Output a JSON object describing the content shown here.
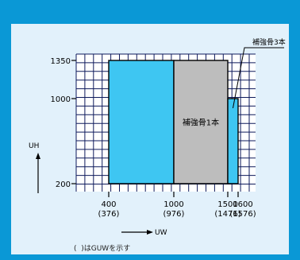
{
  "chart_data": {
    "type": "area",
    "title": "",
    "xlabel": "UW",
    "ylabel": "UH",
    "x_ticks": [
      {
        "value": 400,
        "label": "400",
        "sub": "(376)"
      },
      {
        "value": 1000,
        "label": "1000",
        "sub": "(976)"
      },
      {
        "value": 1500,
        "label": "1500",
        "sub": "(1476)"
      },
      {
        "value": 1600,
        "label": "1600",
        "sub": "(1576)"
      }
    ],
    "y_ticks": [
      {
        "value": 200,
        "label": "200"
      },
      {
        "value": 1000,
        "label": "1000"
      },
      {
        "value": 1350,
        "label": "1350"
      }
    ],
    "grid": true,
    "regions": [
      {
        "name": "no-reinforcement",
        "x": [
          400,
          1000
        ],
        "y": [
          200,
          1350
        ],
        "color": "#3ec6f2",
        "label": ""
      },
      {
        "name": "reinforcement-1",
        "x": [
          1000,
          1500
        ],
        "y": [
          200,
          1350
        ],
        "color": "#bdbdbd",
        "label": "補強骨1本"
      },
      {
        "name": "reinforcement-3",
        "x": [
          1500,
          1600
        ],
        "y": [
          200,
          1000
        ],
        "color": "#3ec6f2",
        "label": "補強骨3本"
      }
    ],
    "note": "(  )はGUWを示す"
  }
}
